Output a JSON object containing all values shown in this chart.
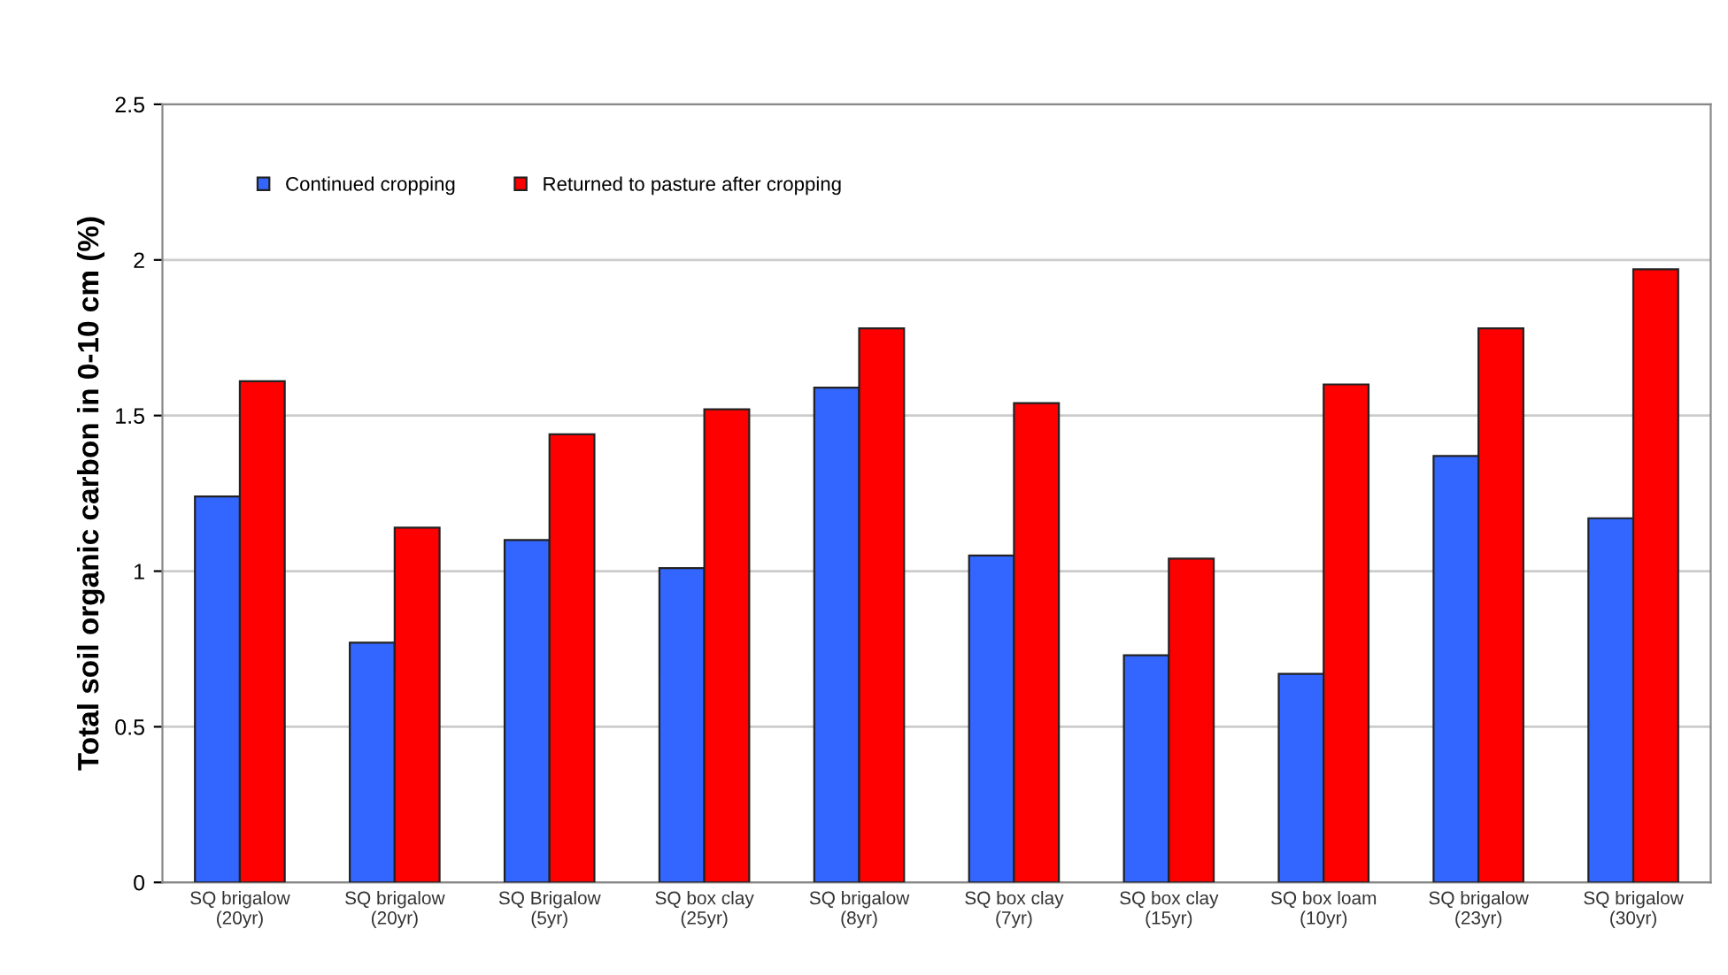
{
  "chart_data": {
    "type": "bar",
    "ylabel": "Total soil organic carbon in 0-10 cm (%)",
    "categories": [
      "SQ brigalow\n(20yr)",
      "SQ brigalow\n(20yr)",
      "SQ Brigalow\n(5yr)",
      "SQ box clay\n(25yr)",
      "SQ brigalow\n(8yr)",
      "SQ box clay\n(7yr)",
      "SQ box clay\n(15yr)",
      "SQ box loam\n(10yr)",
      "SQ brigalow\n(23yr)",
      "SQ brigalow\n(30yr)"
    ],
    "series": [
      {
        "name": "Continued cropping",
        "color": "#3366ff",
        "values": [
          1.24,
          0.77,
          1.1,
          1.01,
          1.59,
          1.05,
          0.73,
          0.67,
          1.37,
          1.17
        ]
      },
      {
        "name": "Returned to pasture after cropping",
        "color": "#ff0000",
        "values": [
          1.61,
          1.14,
          1.44,
          1.52,
          1.78,
          1.54,
          1.04,
          1.6,
          1.78,
          1.97
        ]
      }
    ],
    "ylim": [
      0,
      2.5
    ],
    "yticks": [
      0,
      0.5,
      1,
      1.5,
      2,
      2.5
    ],
    "grid": "y",
    "legend": "top left"
  }
}
